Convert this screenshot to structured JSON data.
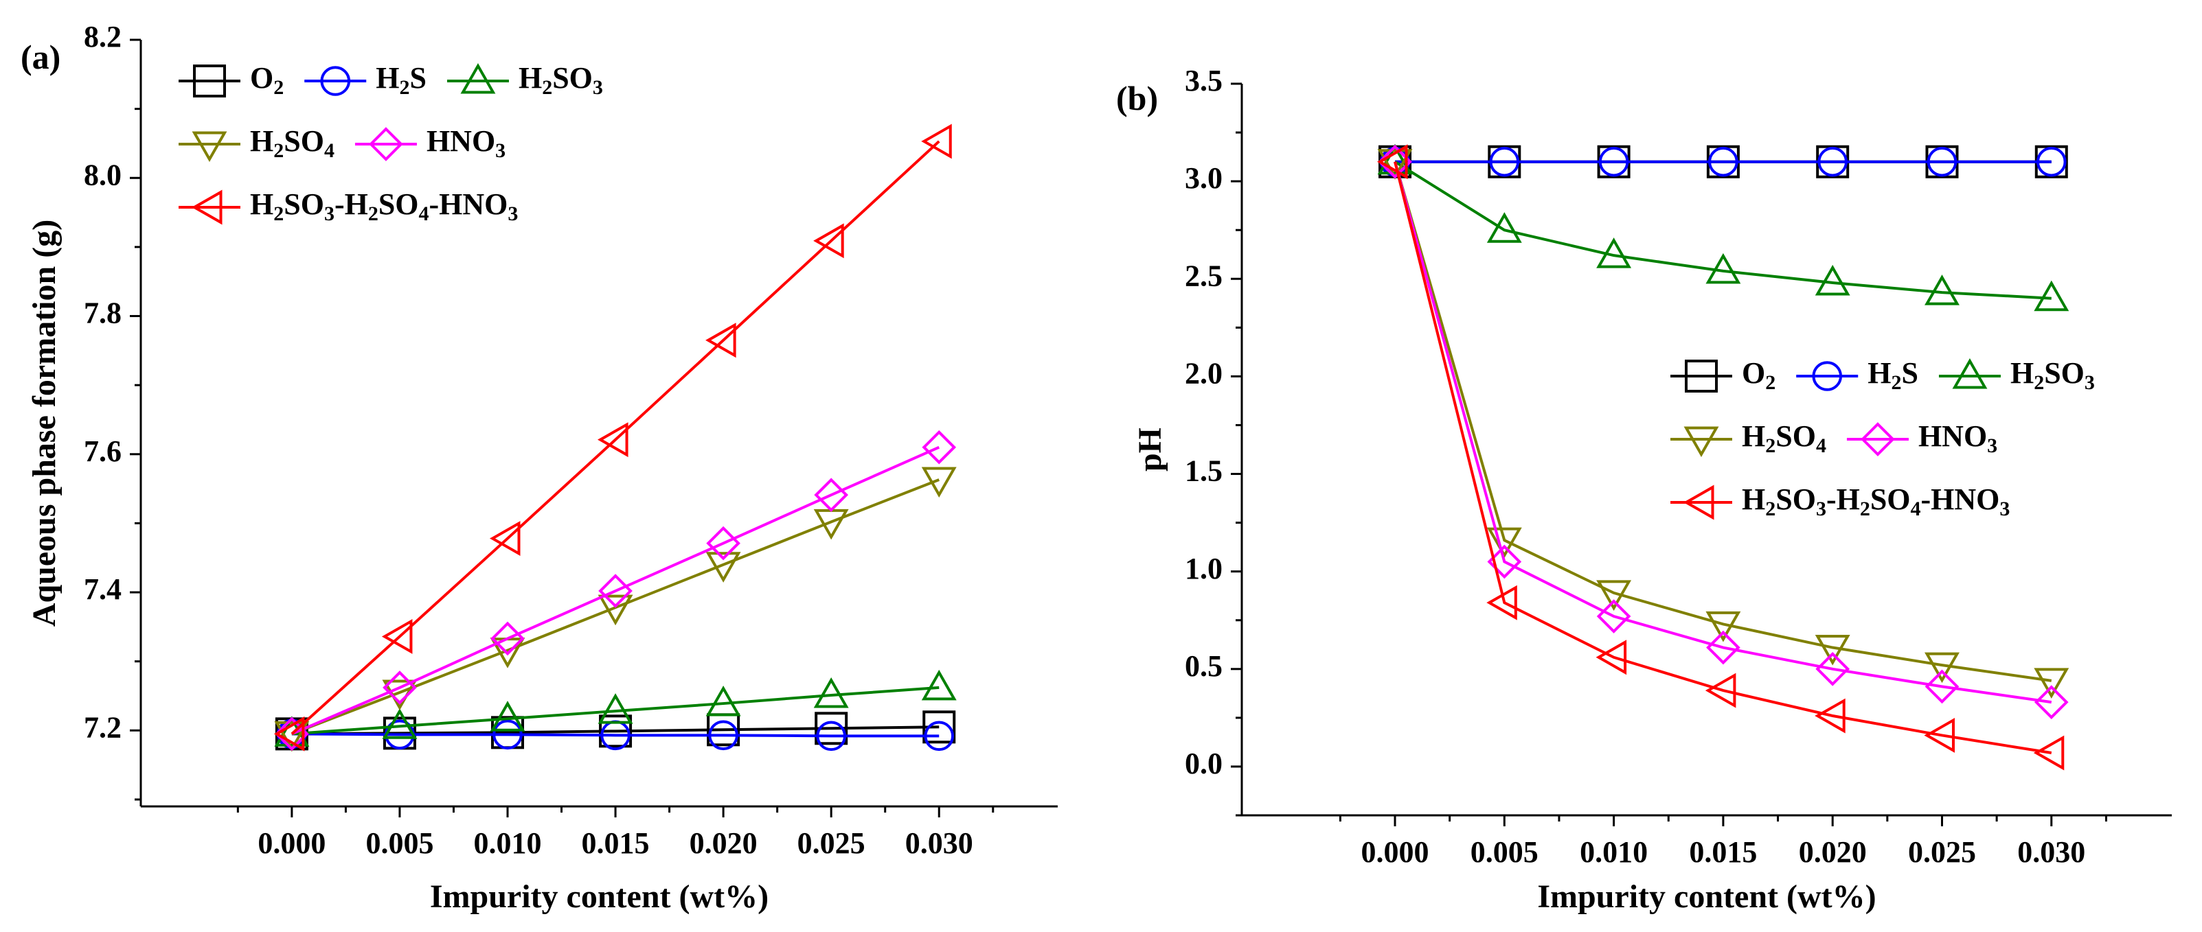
{
  "chart_data": [
    {
      "id": "a",
      "type": "line",
      "panel_label": "(a)",
      "title": "",
      "xlabel": "Impurity content (wt%)",
      "ylabel": "Aqueous phase formation (g)",
      "xlim": [
        -0.007,
        0.0355
      ],
      "ylim": [
        7.09,
        8.2
      ],
      "x": [
        0.0,
        0.005,
        0.01,
        0.015,
        0.02,
        0.025,
        0.03
      ],
      "x_tick_labels": [
        "0.000",
        "0.005",
        "0.010",
        "0.015",
        "0.020",
        "0.025",
        "0.030"
      ],
      "y_ticks": [
        7.2,
        7.4,
        7.6,
        7.8,
        8.0,
        8.2
      ],
      "y_tick_labels": [
        "7.2",
        "7.4",
        "7.6",
        "7.8",
        "8.0",
        "8.2"
      ],
      "legend_position": "top-left",
      "series": [
        {
          "name": "O2",
          "label_main": "O",
          "label_sub": "2",
          "color": "#000000",
          "marker": "square",
          "values": [
            7.195,
            7.196,
            7.197,
            7.199,
            7.201,
            7.203,
            7.205
          ]
        },
        {
          "name": "H2S",
          "label_main": "H",
          "label_sub": "2",
          "label_rest": "S",
          "color": "#0000ff",
          "marker": "circle",
          "values": [
            7.195,
            7.194,
            7.194,
            7.193,
            7.193,
            7.192,
            7.192
          ]
        },
        {
          "name": "H2SO3",
          "label_main": "H",
          "label_sub": "2",
          "label_rest": "SO",
          "label_sub2": "3",
          "color": "#008000",
          "marker": "triangle-up",
          "values": [
            7.195,
            7.206,
            7.217,
            7.228,
            7.239,
            7.251,
            7.262
          ]
        },
        {
          "name": "H2SO4",
          "label_main": "H",
          "label_sub": "2",
          "label_rest": "SO",
          "label_sub2": "4",
          "color": "#808000",
          "marker": "triangle-down",
          "values": [
            7.195,
            7.255,
            7.316,
            7.378,
            7.44,
            7.502,
            7.563
          ]
        },
        {
          "name": "HNO3",
          "label_main": "HNO",
          "label_sub": "3",
          "color": "#ff00ff",
          "marker": "diamond",
          "values": [
            7.195,
            7.262,
            7.333,
            7.402,
            7.471,
            7.541,
            7.61
          ]
        },
        {
          "name": "H2SO3-H2SO4-HNO3",
          "label_main": "H",
          "label_sub": "2",
          "label_rest": "SO",
          "label_sub2": "3",
          "label_rest2": "-H",
          "label_sub3": "2",
          "label_rest3": "SO",
          "label_sub4": "4",
          "label_rest4": "-HNO",
          "label_sub5": "3",
          "color": "#ff0000",
          "marker": "triangle-left",
          "values": [
            7.195,
            7.336,
            7.478,
            7.621,
            7.765,
            7.909,
            8.053
          ]
        }
      ]
    },
    {
      "id": "b",
      "type": "line",
      "panel_label": "(b)",
      "title": "",
      "xlabel": "Impurity content (wt%)",
      "ylabel": "pH",
      "xlim": [
        -0.007,
        0.0355
      ],
      "ylim": [
        -0.25,
        3.5
      ],
      "x": [
        0.0,
        0.005,
        0.01,
        0.015,
        0.02,
        0.025,
        0.03
      ],
      "x_tick_labels": [
        "0.000",
        "0.005",
        "0.010",
        "0.015",
        "0.020",
        "0.025",
        "0.030"
      ],
      "y_ticks": [
        0.0,
        0.5,
        1.0,
        1.5,
        2.0,
        2.5,
        3.0,
        3.5
      ],
      "y_tick_labels": [
        "0.0",
        "0.5",
        "1.0",
        "1.5",
        "2.0",
        "2.5",
        "3.0",
        "3.5"
      ],
      "legend_position": "center-right",
      "series": [
        {
          "name": "O2",
          "label_main": "O",
          "label_sub": "2",
          "color": "#000000",
          "marker": "square",
          "values": [
            3.1,
            3.1,
            3.1,
            3.1,
            3.1,
            3.1,
            3.1
          ]
        },
        {
          "name": "H2S",
          "label_main": "H",
          "label_sub": "2",
          "label_rest": "S",
          "color": "#0000ff",
          "marker": "circle",
          "values": [
            3.1,
            3.1,
            3.1,
            3.1,
            3.1,
            3.1,
            3.1
          ]
        },
        {
          "name": "H2SO3",
          "label_main": "H",
          "label_sub": "2",
          "label_rest": "SO",
          "label_sub2": "3",
          "color": "#008000",
          "marker": "triangle-up",
          "values": [
            3.1,
            2.75,
            2.62,
            2.54,
            2.48,
            2.43,
            2.4
          ]
        },
        {
          "name": "H2SO4",
          "label_main": "H",
          "label_sub": "2",
          "label_rest": "SO",
          "label_sub2": "4",
          "color": "#808000",
          "marker": "triangle-down",
          "values": [
            3.1,
            1.16,
            0.89,
            0.73,
            0.61,
            0.52,
            0.44
          ]
        },
        {
          "name": "HNO3",
          "label_main": "HNO",
          "label_sub": "3",
          "color": "#ff00ff",
          "marker": "diamond",
          "values": [
            3.1,
            1.05,
            0.77,
            0.61,
            0.5,
            0.41,
            0.33
          ]
        },
        {
          "name": "H2SO3-H2SO4-HNO3",
          "label_main": "H",
          "label_sub": "2",
          "label_rest": "SO",
          "label_sub2": "3",
          "label_rest2": "-H",
          "label_sub3": "2",
          "label_rest3": "SO",
          "label_sub4": "4",
          "label_rest4": "-HNO",
          "label_sub5": "3",
          "color": "#ff0000",
          "marker": "triangle-left",
          "values": [
            3.1,
            0.84,
            0.56,
            0.39,
            0.26,
            0.16,
            0.07
          ]
        }
      ]
    }
  ]
}
